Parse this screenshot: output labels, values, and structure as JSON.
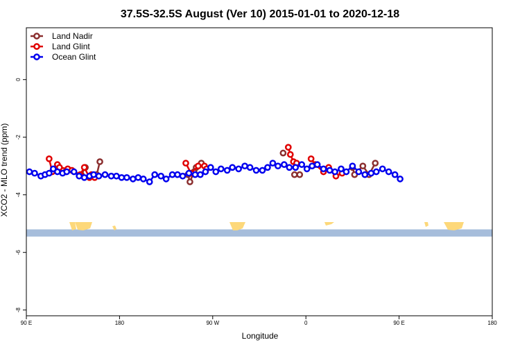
{
  "chart_data": {
    "type": "line",
    "title": "37.5S-32.5S August (Ver 10)   2015-01-01 to 2020-12-18",
    "xlabel": "Longitude",
    "ylabel": "XCO2 - MLO trend (ppm)",
    "xlim": [
      90,
      450
    ],
    "ylim": [
      -8.2,
      1.8
    ],
    "x_ticks": [
      {
        "value": 90,
        "label": "90 E"
      },
      {
        "value": 180,
        "label": "180"
      },
      {
        "value": 270,
        "label": "90 W"
      },
      {
        "value": 360,
        "label": "0"
      },
      {
        "value": 450,
        "label": "90 E"
      },
      {
        "value": 540,
        "label": "180"
      }
    ],
    "y_ticks": [
      {
        "value": 0,
        "label": "0"
      },
      {
        "value": -2,
        "label": "-2"
      },
      {
        "value": -4,
        "label": "-4"
      },
      {
        "value": -6,
        "label": "-6"
      },
      {
        "value": -8,
        "label": "-8"
      }
    ],
    "legend_position": "top-left",
    "x_axis_note": "longitude axis wraps: x beyond 180 continues eastward through 90 W and 0 back to 90 E and 180",
    "background_map_band": {
      "y_range": [
        -5.45,
        -5.2
      ],
      "ocean_color": "#a6bddb",
      "land_color": "#fdd87a"
    },
    "series": [
      {
        "name": "Land Nadir",
        "color": "#8b2f2f",
        "x": [
          128,
          143,
          147,
          158,
          161,
          246,
          248,
          252,
          254,
          259,
          338,
          349,
          354,
          405,
          407,
          415,
          421,
          427
        ],
        "y": [
          -3.2,
          -3.3,
          -3.05,
          -3.3,
          -2.85,
          -3.3,
          -3.55,
          -3.2,
          -3.05,
          -2.9,
          -2.55,
          -3.3,
          -3.3,
          -3.05,
          -3.3,
          -3.0,
          -3.3,
          -2.9
        ]
      },
      {
        "name": "Land Glint",
        "color": "#e00000",
        "x": [
          112,
          115,
          120,
          122,
          130,
          134,
          142,
          146,
          151,
          153,
          156,
          244,
          249,
          256,
          262,
          264,
          343,
          345,
          348,
          351,
          365,
          369,
          377,
          382,
          389,
          395
        ],
        "y": [
          -2.75,
          -3.2,
          -2.95,
          -3.05,
          -3.1,
          -3.15,
          -3.3,
          -3.05,
          -3.4,
          -3.3,
          -3.4,
          -2.9,
          -3.25,
          -3.0,
          -3.0,
          -3.1,
          -2.35,
          -2.6,
          -2.85,
          -2.9,
          -2.75,
          -2.95,
          -3.2,
          -3.05,
          -3.35,
          -3.25
        ]
      },
      {
        "name": "Ocean Glint",
        "color": "#0000ee",
        "x": [
          93,
          98,
          104,
          108,
          112,
          116,
          120,
          125,
          129,
          136,
          141,
          146,
          151,
          155,
          160,
          166,
          172,
          177,
          182,
          187,
          193,
          198,
          203,
          209,
          214,
          220,
          225,
          231,
          236,
          241,
          247,
          253,
          258,
          263,
          268,
          273,
          278,
          284,
          289,
          295,
          301,
          306,
          312,
          318,
          323,
          328,
          333,
          339,
          344,
          350,
          356,
          361,
          366,
          371,
          377,
          383,
          388,
          394,
          399,
          405,
          411,
          417,
          423,
          428,
          434,
          440,
          446,
          451
        ],
        "y": [
          -3.2,
          -3.25,
          -3.35,
          -3.3,
          -3.25,
          -3.1,
          -3.2,
          -3.25,
          -3.2,
          -3.2,
          -3.35,
          -3.4,
          -3.35,
          -3.3,
          -3.35,
          -3.3,
          -3.35,
          -3.35,
          -3.4,
          -3.4,
          -3.45,
          -3.4,
          -3.45,
          -3.55,
          -3.3,
          -3.35,
          -3.45,
          -3.3,
          -3.3,
          -3.35,
          -3.25,
          -3.3,
          -3.3,
          -3.2,
          -3.05,
          -3.2,
          -3.1,
          -3.15,
          -3.05,
          -3.1,
          -3.0,
          -3.05,
          -3.15,
          -3.15,
          -3.05,
          -2.9,
          -3.0,
          -2.95,
          -3.05,
          -3.05,
          -2.95,
          -3.1,
          -3.0,
          -2.95,
          -3.1,
          -3.15,
          -3.2,
          -3.1,
          -3.2,
          -3.0,
          -3.2,
          -3.3,
          -3.25,
          -3.2,
          -3.1,
          -3.2,
          -3.3,
          -3.45
        ]
      }
    ]
  }
}
